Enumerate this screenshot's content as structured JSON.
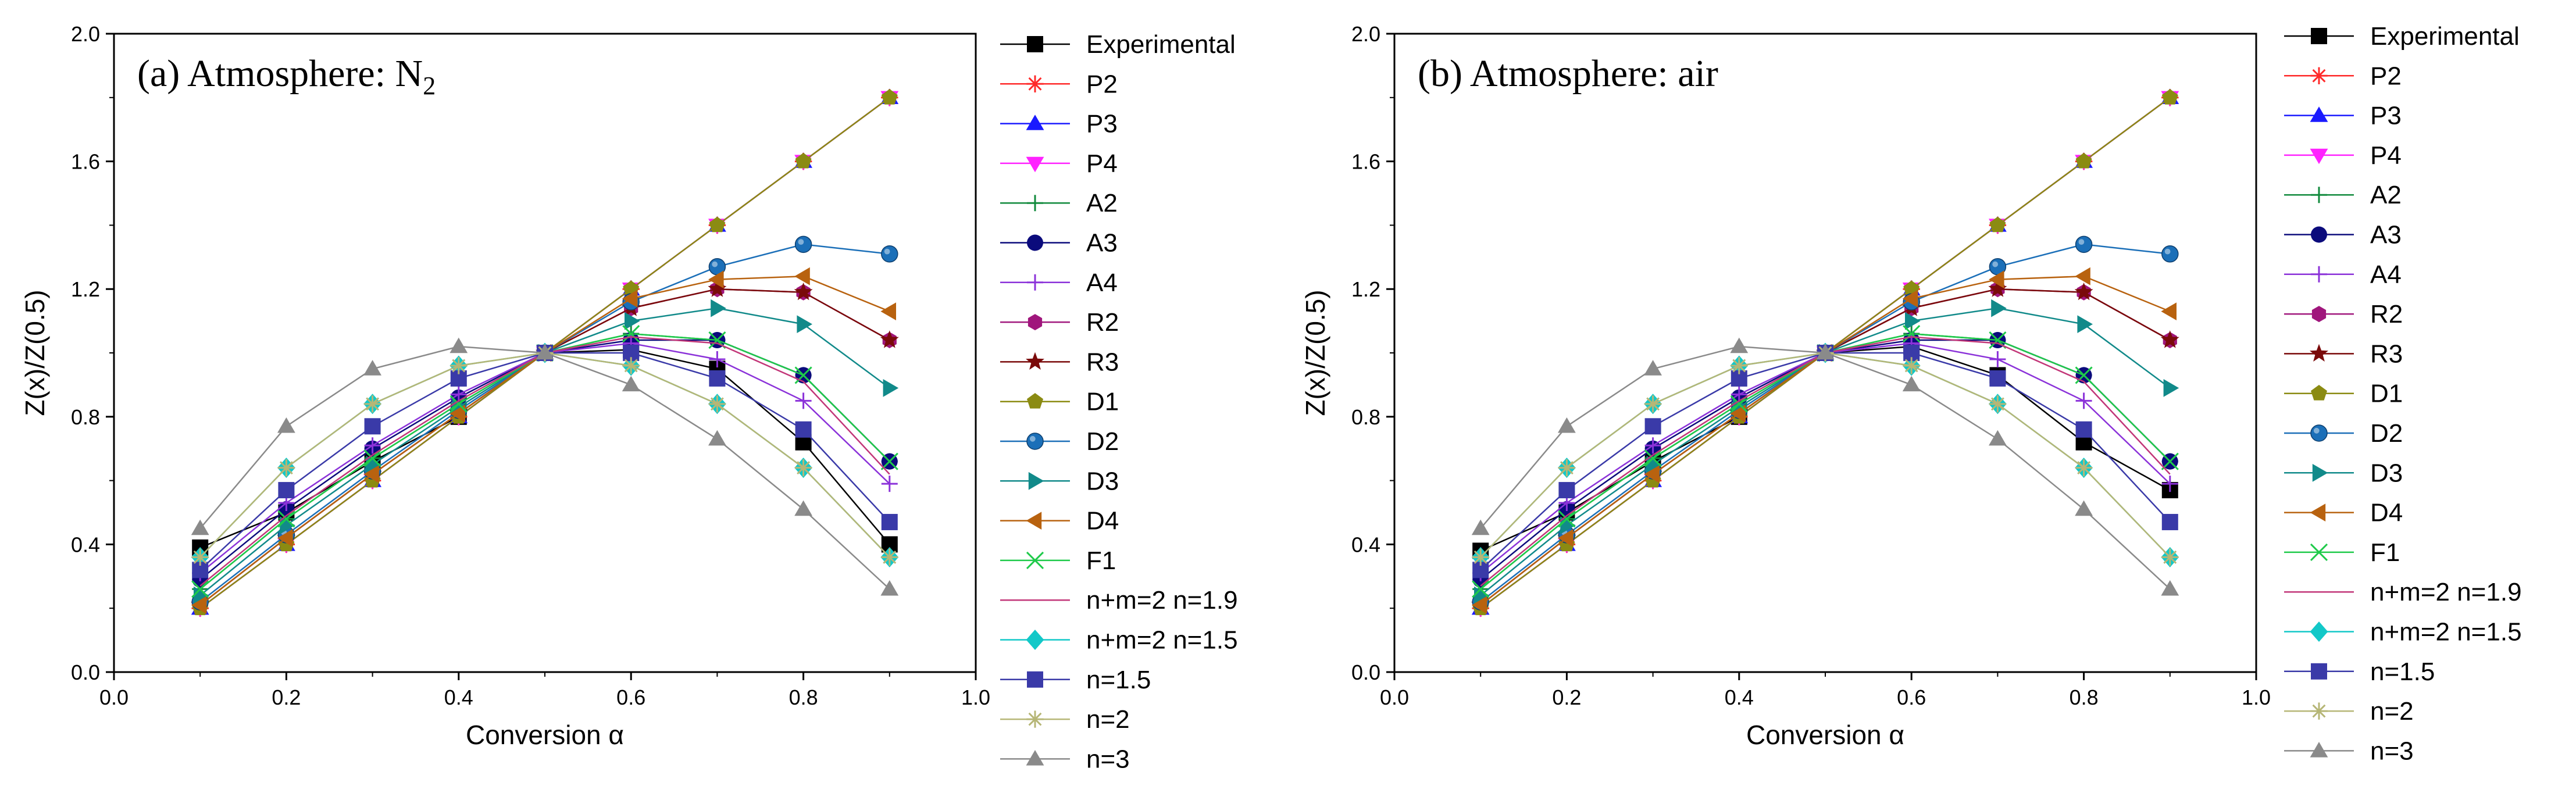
{
  "chart_data": [
    {
      "type": "line",
      "title": "(a) Atmosphere: N",
      "title_subscript": "2",
      "xlabel": "Conversion α",
      "ylabel": "Z(x)/Z(0.5)",
      "xlim": [
        0.0,
        1.0
      ],
      "ylim": [
        0.0,
        2.0
      ],
      "xticks": [
        "0.0",
        "0.2",
        "0.4",
        "0.6",
        "0.8",
        "1.0"
      ],
      "yticks": [
        "0.0",
        "0.4",
        "0.8",
        "1.2",
        "1.6",
        "2.0"
      ],
      "grid": false,
      "legend": "right",
      "x": [
        0.1,
        0.2,
        0.3,
        0.4,
        0.5,
        0.6,
        0.7,
        0.8,
        0.9
      ],
      "series": [
        {
          "name": "Experimental",
          "values": [
            0.39,
            0.5,
            0.66,
            0.8,
            1.0,
            1.01,
            0.95,
            0.72,
            0.4
          ]
        },
        {
          "name": "P2",
          "values": [
            0.2,
            0.4,
            0.6,
            0.8,
            1.0,
            1.2,
            1.4,
            1.6,
            1.8
          ]
        },
        {
          "name": "P3",
          "values": [
            0.2,
            0.4,
            0.6,
            0.8,
            1.0,
            1.2,
            1.4,
            1.6,
            1.8
          ]
        },
        {
          "name": "P4",
          "values": [
            0.2,
            0.4,
            0.6,
            0.8,
            1.0,
            1.2,
            1.4,
            1.6,
            1.8
          ]
        },
        {
          "name": "A2",
          "values": [
            0.26,
            0.48,
            0.67,
            0.84,
            1.0,
            1.06,
            1.04,
            0.93,
            0.66
          ]
        },
        {
          "name": "A3",
          "values": [
            0.29,
            0.51,
            0.7,
            0.86,
            1.0,
            1.04,
            1.04,
            0.93,
            0.66
          ]
        },
        {
          "name": "A4",
          "values": [
            0.31,
            0.53,
            0.71,
            0.87,
            1.0,
            1.03,
            0.98,
            0.85,
            0.59
          ]
        },
        {
          "name": "R2",
          "values": [
            0.21,
            0.42,
            0.62,
            0.81,
            1.0,
            1.14,
            1.2,
            1.19,
            1.04
          ]
        },
        {
          "name": "R3",
          "values": [
            0.21,
            0.42,
            0.62,
            0.81,
            1.0,
            1.14,
            1.2,
            1.19,
            1.04
          ]
        },
        {
          "name": "D1",
          "values": [
            0.2,
            0.4,
            0.6,
            0.8,
            1.0,
            1.2,
            1.4,
            1.6,
            1.8
          ]
        },
        {
          "name": "D2",
          "values": [
            0.22,
            0.43,
            0.63,
            0.82,
            1.0,
            1.16,
            1.27,
            1.34,
            1.31
          ]
        },
        {
          "name": "D3",
          "values": [
            0.24,
            0.46,
            0.65,
            0.83,
            1.0,
            1.1,
            1.14,
            1.09,
            0.89
          ]
        },
        {
          "name": "D4",
          "values": [
            0.21,
            0.42,
            0.62,
            0.81,
            1.0,
            1.17,
            1.23,
            1.24,
            1.13
          ]
        },
        {
          "name": "F1",
          "values": [
            0.26,
            0.48,
            0.67,
            0.84,
            1.0,
            1.06,
            1.04,
            0.93,
            0.66
          ]
        },
        {
          "name": "n+m=2 n=1.9",
          "values": [
            0.27,
            0.49,
            0.68,
            0.85,
            1.0,
            1.05,
            1.03,
            0.91,
            0.62
          ]
        },
        {
          "name": "n+m=2 n=1.5",
          "values": [
            0.36,
            0.64,
            0.84,
            0.96,
            1.0,
            0.96,
            0.84,
            0.64,
            0.36
          ]
        },
        {
          "name": "n=1.5",
          "values": [
            0.32,
            0.57,
            0.77,
            0.92,
            1.0,
            1.0,
            0.92,
            0.76,
            0.47
          ]
        },
        {
          "name": "n=2",
          "values": [
            0.36,
            0.64,
            0.84,
            0.96,
            1.0,
            0.96,
            0.84,
            0.64,
            0.36
          ]
        },
        {
          "name": "n=3",
          "values": [
            0.45,
            0.77,
            0.95,
            1.02,
            1.0,
            0.9,
            0.73,
            0.51,
            0.26
          ]
        }
      ]
    },
    {
      "type": "line",
      "title": "(b) Atmosphere: air",
      "xlabel": "Conversion α",
      "ylabel": "Z(x)/Z(0.5)",
      "xlim": [
        0.0,
        1.0
      ],
      "ylim": [
        0.0,
        2.0
      ],
      "xticks": [
        "0.0",
        "0.2",
        "0.4",
        "0.6",
        "0.8",
        "1.0"
      ],
      "yticks": [
        "0.0",
        "0.4",
        "0.8",
        "1.2",
        "1.6",
        "2.0"
      ],
      "grid": false,
      "legend": "right",
      "x": [
        0.1,
        0.2,
        0.3,
        0.4,
        0.5,
        0.6,
        0.7,
        0.8,
        0.9
      ],
      "series": [
        {
          "name": "Experimental",
          "values": [
            0.38,
            0.5,
            0.66,
            0.8,
            1.0,
            1.02,
            0.93,
            0.72,
            0.57
          ]
        },
        {
          "name": "P2",
          "values": [
            0.2,
            0.4,
            0.6,
            0.8,
            1.0,
            1.2,
            1.4,
            1.6,
            1.8
          ]
        },
        {
          "name": "P3",
          "values": [
            0.2,
            0.4,
            0.6,
            0.8,
            1.0,
            1.2,
            1.4,
            1.6,
            1.8
          ]
        },
        {
          "name": "P4",
          "values": [
            0.2,
            0.4,
            0.6,
            0.8,
            1.0,
            1.2,
            1.4,
            1.6,
            1.8
          ]
        },
        {
          "name": "A2",
          "values": [
            0.26,
            0.48,
            0.67,
            0.84,
            1.0,
            1.06,
            1.04,
            0.93,
            0.66
          ]
        },
        {
          "name": "A3",
          "values": [
            0.29,
            0.51,
            0.7,
            0.86,
            1.0,
            1.04,
            1.04,
            0.93,
            0.66
          ]
        },
        {
          "name": "A4",
          "values": [
            0.31,
            0.53,
            0.71,
            0.87,
            1.0,
            1.03,
            0.98,
            0.85,
            0.59
          ]
        },
        {
          "name": "R2",
          "values": [
            0.21,
            0.42,
            0.62,
            0.81,
            1.0,
            1.14,
            1.2,
            1.19,
            1.04
          ]
        },
        {
          "name": "R3",
          "values": [
            0.21,
            0.42,
            0.62,
            0.81,
            1.0,
            1.14,
            1.2,
            1.19,
            1.04
          ]
        },
        {
          "name": "D1",
          "values": [
            0.2,
            0.4,
            0.6,
            0.8,
            1.0,
            1.2,
            1.4,
            1.6,
            1.8
          ]
        },
        {
          "name": "D2",
          "values": [
            0.22,
            0.43,
            0.63,
            0.82,
            1.0,
            1.16,
            1.27,
            1.34,
            1.31
          ]
        },
        {
          "name": "D3",
          "values": [
            0.24,
            0.46,
            0.65,
            0.83,
            1.0,
            1.1,
            1.14,
            1.09,
            0.89
          ]
        },
        {
          "name": "D4",
          "values": [
            0.21,
            0.42,
            0.62,
            0.81,
            1.0,
            1.17,
            1.23,
            1.24,
            1.13
          ]
        },
        {
          "name": "F1",
          "values": [
            0.26,
            0.48,
            0.67,
            0.84,
            1.0,
            1.06,
            1.04,
            0.93,
            0.66
          ]
        },
        {
          "name": "n+m=2 n=1.9",
          "values": [
            0.27,
            0.49,
            0.68,
            0.85,
            1.0,
            1.05,
            1.03,
            0.91,
            0.62
          ]
        },
        {
          "name": "n+m=2 n=1.5",
          "values": [
            0.36,
            0.64,
            0.84,
            0.96,
            1.0,
            0.96,
            0.84,
            0.64,
            0.36
          ]
        },
        {
          "name": "n=1.5",
          "values": [
            0.32,
            0.57,
            0.77,
            0.92,
            1.0,
            1.0,
            0.92,
            0.76,
            0.47
          ]
        },
        {
          "name": "n=2",
          "values": [
            0.36,
            0.64,
            0.84,
            0.96,
            1.0,
            0.96,
            0.84,
            0.64,
            0.36
          ]
        },
        {
          "name": "n=3",
          "values": [
            0.45,
            0.77,
            0.95,
            1.02,
            1.0,
            0.9,
            0.73,
            0.51,
            0.26
          ]
        }
      ]
    }
  ],
  "series_styles": [
    {
      "name": "Experimental",
      "marker": "square",
      "color": "#000000"
    },
    {
      "name": "P2",
      "marker": "asterisk",
      "color": "#ff2a2a"
    },
    {
      "name": "P3",
      "marker": "triangle-up",
      "color": "#1a1aff"
    },
    {
      "name": "P4",
      "marker": "triangle-down",
      "color": "#ff22ff"
    },
    {
      "name": "A2",
      "marker": "plus",
      "color": "#108a3c"
    },
    {
      "name": "A3",
      "marker": "circle",
      "color": "#0b0b7c"
    },
    {
      "name": "A4",
      "marker": "plus",
      "color": "#8b32d9"
    },
    {
      "name": "R2",
      "marker": "hexagon",
      "color": "#a0167c"
    },
    {
      "name": "R3",
      "marker": "star",
      "color": "#7a0a0a"
    },
    {
      "name": "D1",
      "marker": "pentagon",
      "color": "#8b8b12"
    },
    {
      "name": "D2",
      "marker": "sphere",
      "color": "#1b6fb8"
    },
    {
      "name": "D3",
      "marker": "triangle-right",
      "color": "#118a8a"
    },
    {
      "name": "D4",
      "marker": "triangle-left",
      "color": "#b8620f"
    },
    {
      "name": "F1",
      "marker": "x",
      "color": "#1fca4a"
    },
    {
      "name": "n+m=2 n=1.9",
      "marker": "none",
      "color": "#c23678"
    },
    {
      "name": "n+m=2 n=1.5",
      "marker": "diamond",
      "color": "#12c8c8"
    },
    {
      "name": "n=1.5",
      "marker": "square",
      "color": "#3a3aa8"
    },
    {
      "name": "n=2",
      "marker": "asterisk",
      "color": "#b6b676"
    },
    {
      "name": "n=3",
      "marker": "triangle-up",
      "color": "#8a8a8a"
    }
  ]
}
